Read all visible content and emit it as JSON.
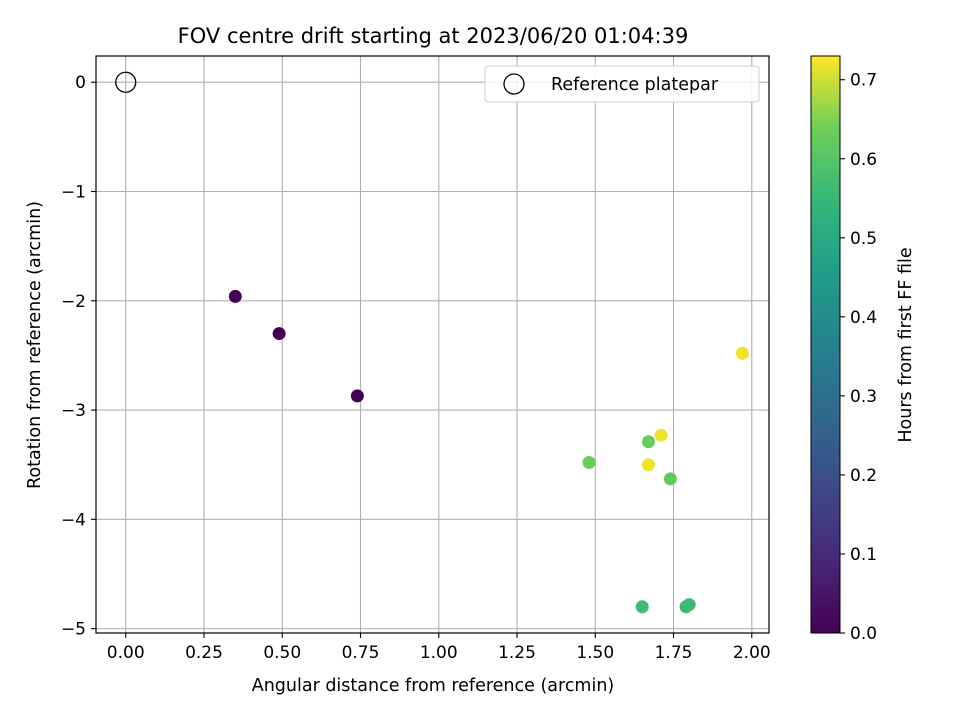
{
  "chart_data": {
    "type": "scatter",
    "title": "FOV centre drift starting at 2023/06/20 01:04:39",
    "xlabel": "Angular distance from reference (arcmin)",
    "ylabel": "Rotation from reference (arcmin)",
    "xlim": [
      -0.095,
      2.055
    ],
    "ylim": [
      -5.04,
      0.24
    ],
    "xticks": [
      0.0,
      0.25,
      0.5,
      0.75,
      1.0,
      1.25,
      1.5,
      1.75,
      2.0
    ],
    "xtick_labels": [
      "0.00",
      "0.25",
      "0.50",
      "0.75",
      "1.00",
      "1.25",
      "1.50",
      "1.75",
      "2.00"
    ],
    "yticks": [
      0,
      -1,
      -2,
      -3,
      -4,
      -5
    ],
    "ytick_labels": [
      "0",
      "−1",
      "−2",
      "−3",
      "−4",
      "−5"
    ],
    "grid": true,
    "legend": {
      "placement": "top-right",
      "entries": [
        "Reference platepar"
      ]
    },
    "reference_point": {
      "x": 0.0,
      "y": 0.0
    },
    "points": [
      {
        "x": 0.35,
        "y": -1.96,
        "hours": 0.0
      },
      {
        "x": 0.49,
        "y": -2.3,
        "hours": 0.0
      },
      {
        "x": 0.74,
        "y": -2.87,
        "hours": 0.0
      },
      {
        "x": 1.48,
        "y": -3.48,
        "hours": 0.63
      },
      {
        "x": 1.67,
        "y": -3.29,
        "hours": 0.63
      },
      {
        "x": 1.67,
        "y": -3.5,
        "hours": 0.72
      },
      {
        "x": 1.71,
        "y": -3.23,
        "hours": 0.72
      },
      {
        "x": 1.74,
        "y": -3.63,
        "hours": 0.62
      },
      {
        "x": 1.97,
        "y": -2.48,
        "hours": 0.72
      },
      {
        "x": 1.65,
        "y": -4.8,
        "hours": 0.56
      },
      {
        "x": 1.79,
        "y": -4.8,
        "hours": 0.56
      },
      {
        "x": 1.8,
        "y": -4.78,
        "hours": 0.56
      }
    ],
    "colorbar": {
      "label": "Hours from first FF file",
      "colormap": "viridis",
      "range": [
        0.0,
        0.73
      ],
      "ticks": [
        0.0,
        0.1,
        0.2,
        0.3,
        0.4,
        0.5,
        0.6,
        0.7
      ],
      "tick_labels": [
        "0.0",
        "0.1",
        "0.2",
        "0.3",
        "0.4",
        "0.5",
        "0.6",
        "0.7"
      ]
    }
  }
}
